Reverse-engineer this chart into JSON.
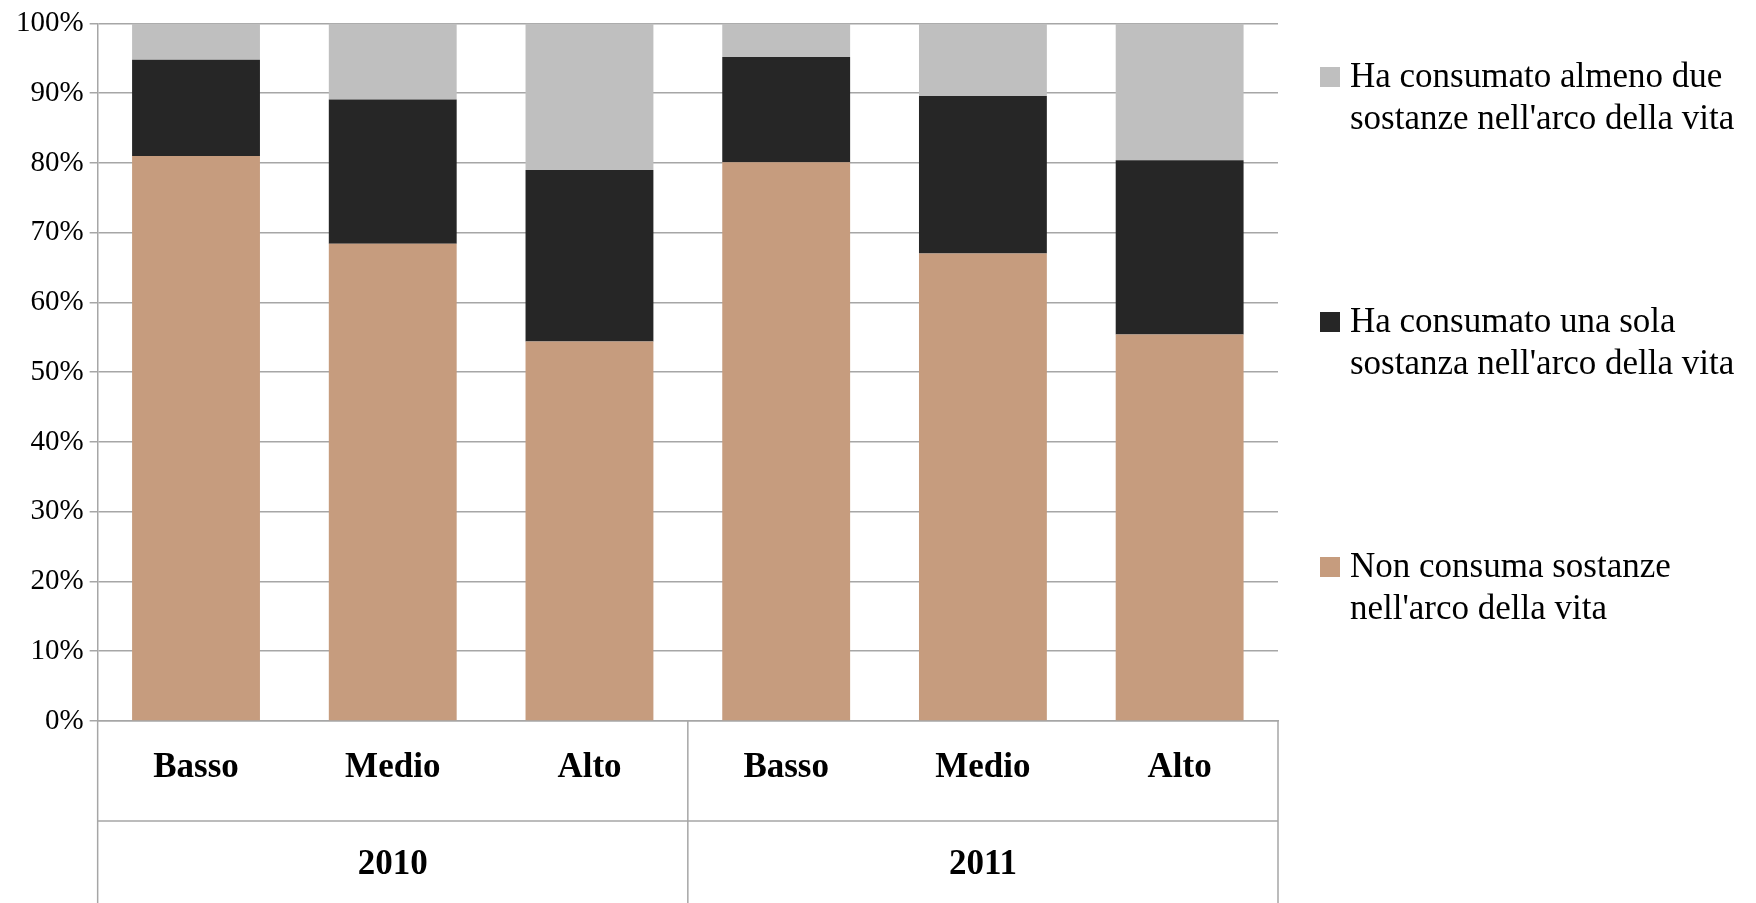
{
  "chart_data": {
    "type": "bar",
    "stacked": true,
    "categories": [
      "Basso",
      "Medio",
      "Alto",
      "Basso",
      "Medio",
      "Alto"
    ],
    "series": [
      {
        "name": "Non consuma sostanze nell'arco della vita",
        "color": "#c69c7e",
        "values": [
          81,
          68.4,
          54.4,
          80.1,
          67,
          55.4
        ]
      },
      {
        "name": "Ha consumato una sola sostanza nell'arco della vita",
        "color": "#262626",
        "values": [
          13.8,
          20.7,
          24.6,
          15.1,
          22.6,
          25
        ]
      },
      {
        "name": "Ha consumato almeno due sostanze nell'arco della vita",
        "color": "#bfbfbf",
        "values": [
          5.2,
          10.9,
          21,
          4.8,
          10.4,
          19.6
        ]
      }
    ],
    "ylim": [
      0,
      100
    ],
    "yticks": [
      {
        "value": 0,
        "label": "0%"
      },
      {
        "value": 10,
        "label": "10%"
      },
      {
        "value": 20,
        "label": "20%"
      },
      {
        "value": 30,
        "label": "30%"
      },
      {
        "value": 40,
        "label": "40%"
      },
      {
        "value": 50,
        "label": "50%"
      },
      {
        "value": 60,
        "label": "60%"
      },
      {
        "value": 70,
        "label": "70%"
      },
      {
        "value": 80,
        "label": "80%"
      },
      {
        "value": 90,
        "label": "90%"
      },
      {
        "value": 100,
        "label": "100%"
      }
    ],
    "grid": "y",
    "legend": "right",
    "annotations": [
      "2010",
      "2011"
    ]
  }
}
